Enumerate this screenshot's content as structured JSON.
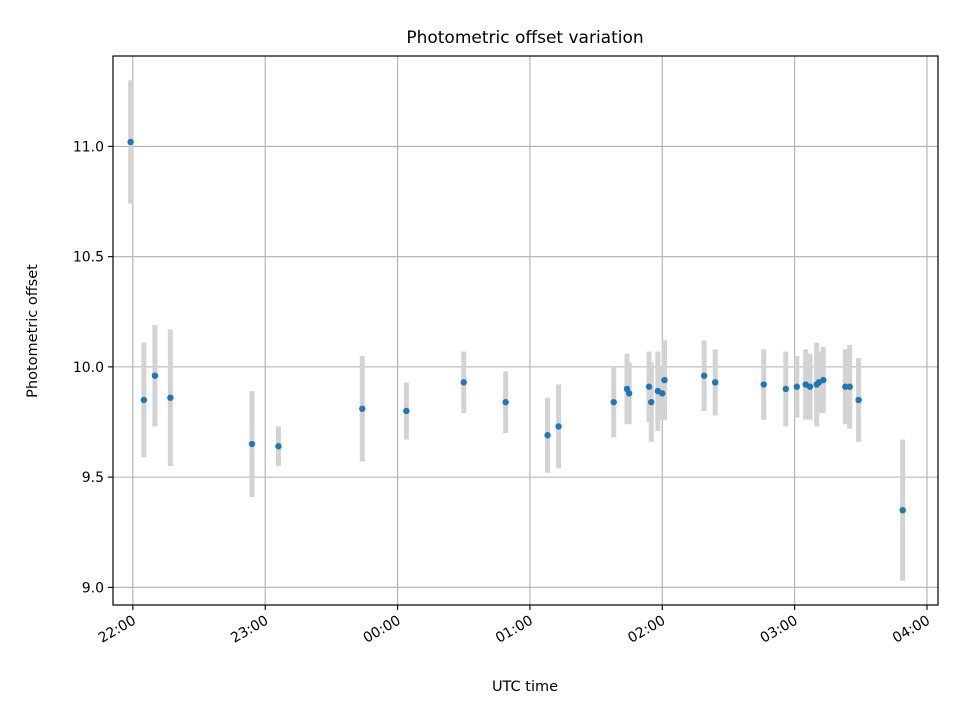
{
  "chart_data": {
    "type": "scatter",
    "title": "Photometric offset variation",
    "xlabel": "UTC time",
    "ylabel": "Photometric offset",
    "x_tick_labels": [
      "22:00",
      "23:00",
      "00:00",
      "01:00",
      "02:00",
      "03:00",
      "04:00"
    ],
    "y_tick_labels": [
      "9.0",
      "9.5",
      "10.0",
      "10.5",
      "11.0"
    ],
    "xlim": [
      "21:51",
      "04:05"
    ],
    "ylim": [
      8.92,
      11.41
    ],
    "grid": true,
    "marker_color": "#1f77b4",
    "errorbar_color": "#d3d3d3",
    "series": [
      {
        "points": [
          {
            "time": "21:59",
            "y": 11.02,
            "err": 0.28
          },
          {
            "time": "22:05",
            "y": 9.85,
            "err": 0.26
          },
          {
            "time": "22:10",
            "y": 9.96,
            "err": 0.23
          },
          {
            "time": "22:17",
            "y": 9.86,
            "err": 0.31
          },
          {
            "time": "22:54",
            "y": 9.65,
            "err": 0.24
          },
          {
            "time": "23:06",
            "y": 9.64,
            "err": 0.09
          },
          {
            "time": "23:44",
            "y": 9.81,
            "err": 0.24
          },
          {
            "time": "00:04",
            "y": 9.8,
            "err": 0.13
          },
          {
            "time": "00:30",
            "y": 9.93,
            "err": 0.14
          },
          {
            "time": "00:49",
            "y": 9.84,
            "err": 0.14
          },
          {
            "time": "01:08",
            "y": 9.69,
            "err": 0.17
          },
          {
            "time": "01:13",
            "y": 9.73,
            "err": 0.19
          },
          {
            "time": "01:38",
            "y": 9.84,
            "err": 0.16
          },
          {
            "time": "01:44",
            "y": 9.9,
            "err": 0.16
          },
          {
            "time": "01:45",
            "y": 9.88,
            "err": 0.14
          },
          {
            "time": "01:54",
            "y": 9.91,
            "err": 0.16
          },
          {
            "time": "01:55",
            "y": 9.84,
            "err": 0.18
          },
          {
            "time": "01:58",
            "y": 9.89,
            "err": 0.18
          },
          {
            "time": "02:00",
            "y": 9.88,
            "err": 0.12
          },
          {
            "time": "02:01",
            "y": 9.94,
            "err": 0.18
          },
          {
            "time": "02:19",
            "y": 9.96,
            "err": 0.16
          },
          {
            "time": "02:24",
            "y": 9.93,
            "err": 0.15
          },
          {
            "time": "02:46",
            "y": 9.92,
            "err": 0.16
          },
          {
            "time": "02:56",
            "y": 9.9,
            "err": 0.17
          },
          {
            "time": "03:01",
            "y": 9.91,
            "err": 0.14
          },
          {
            "time": "03:05",
            "y": 9.92,
            "err": 0.16
          },
          {
            "time": "03:07",
            "y": 9.91,
            "err": 0.15
          },
          {
            "time": "03:10",
            "y": 9.92,
            "err": 0.19
          },
          {
            "time": "03:11",
            "y": 9.93,
            "err": 0.14
          },
          {
            "time": "03:13",
            "y": 9.94,
            "err": 0.15
          },
          {
            "time": "03:23",
            "y": 9.91,
            "err": 0.17
          },
          {
            "time": "03:25",
            "y": 9.91,
            "err": 0.19
          },
          {
            "time": "03:29",
            "y": 9.85,
            "err": 0.19
          },
          {
            "time": "03:49",
            "y": 9.35,
            "err": 0.32
          }
        ]
      }
    ]
  }
}
